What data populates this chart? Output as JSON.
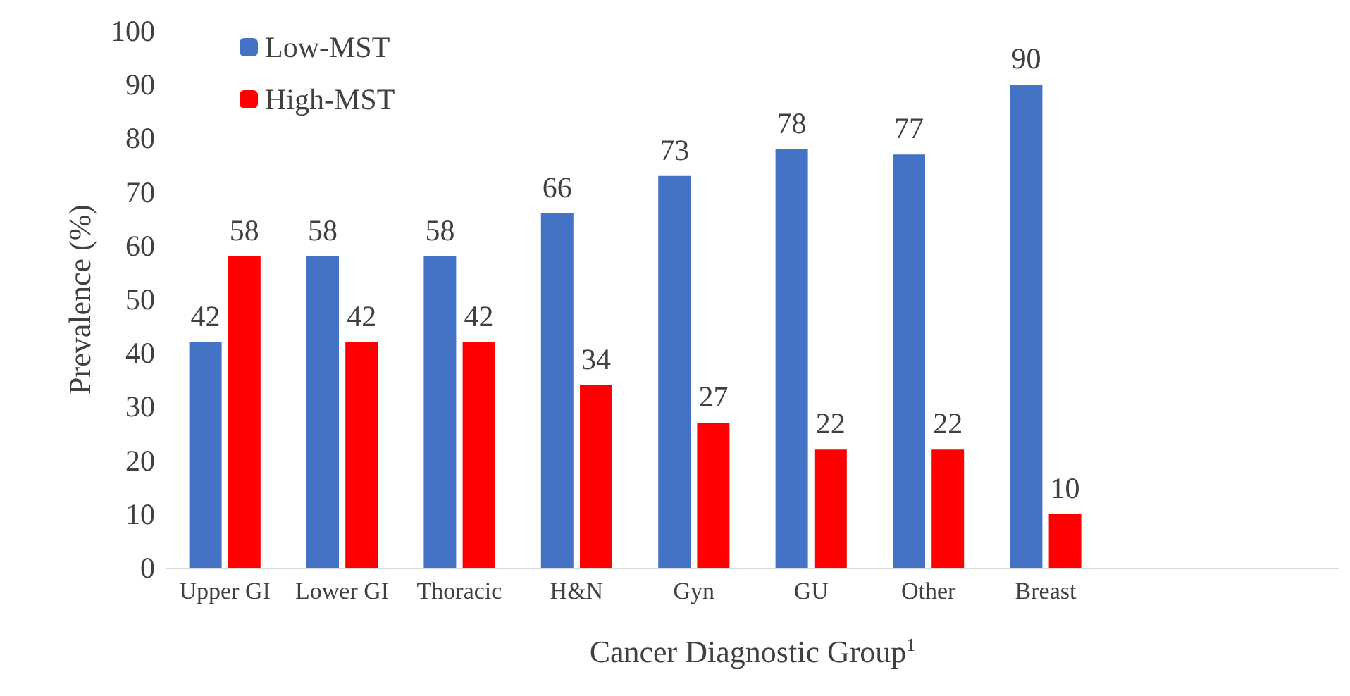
{
  "chart_data": {
    "type": "bar",
    "xlabel": "Cancer Diagnostic Group$^{1}$",
    "ylabel": "Prevalence (%)",
    "categories": [
      "Upper GI",
      "Lower GI",
      "Thoracic",
      "H&N",
      "Gyn",
      "GU",
      "Other",
      "Breast",
      null,
      null
    ],
    "series": [
      {
        "name": "Low-MST",
        "color": "#4472c4",
        "values": [
          42,
          58,
          58,
          66,
          73,
          78,
          77,
          90,
          null,
          null
        ]
      },
      {
        "name": "High-MST",
        "color": "#ff0000",
        "values": [
          58,
          42,
          42,
          34,
          27,
          22,
          22,
          10,
          null,
          null
        ]
      }
    ],
    "ylim": [
      0,
      100
    ],
    "yticks": [
      0,
      10,
      20,
      30,
      40,
      50,
      60,
      70,
      80,
      90,
      100
    ],
    "data_labels": true,
    "legend": "top left",
    "grid": false
  }
}
